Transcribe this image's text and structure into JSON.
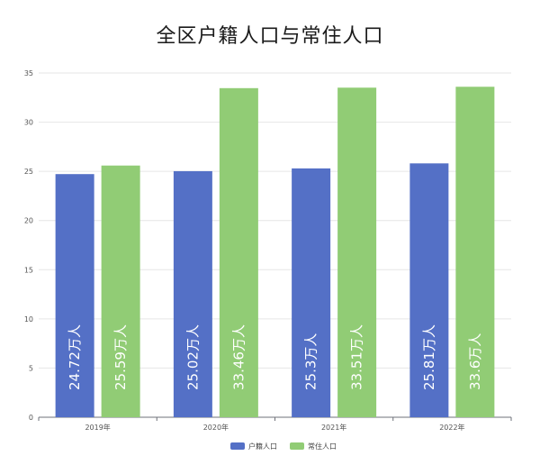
{
  "chart_data": {
    "type": "bar",
    "title": "全区户籍人口与常住人口",
    "categories": [
      "2019年",
      "2020年",
      "2021年",
      "2022年"
    ],
    "series": [
      {
        "name": "户籍人口",
        "color": "#5470c6",
        "values": [
          24.72,
          25.02,
          25.3,
          25.81
        ],
        "labels": [
          "24.72万人",
          "25.02万人",
          "25.3万人",
          "25.81万人"
        ]
      },
      {
        "name": "常住人口",
        "color": "#91cc75",
        "values": [
          25.59,
          33.46,
          33.51,
          33.6
        ],
        "labels": [
          "25.59万人",
          "33.46万人",
          "33.51万人",
          "33.6万人"
        ]
      }
    ],
    "ylim": [
      0,
      35
    ],
    "yticks": [
      0,
      5,
      10,
      15,
      20,
      25,
      30,
      35
    ],
    "grid": true,
    "legend": "bottom-center"
  }
}
